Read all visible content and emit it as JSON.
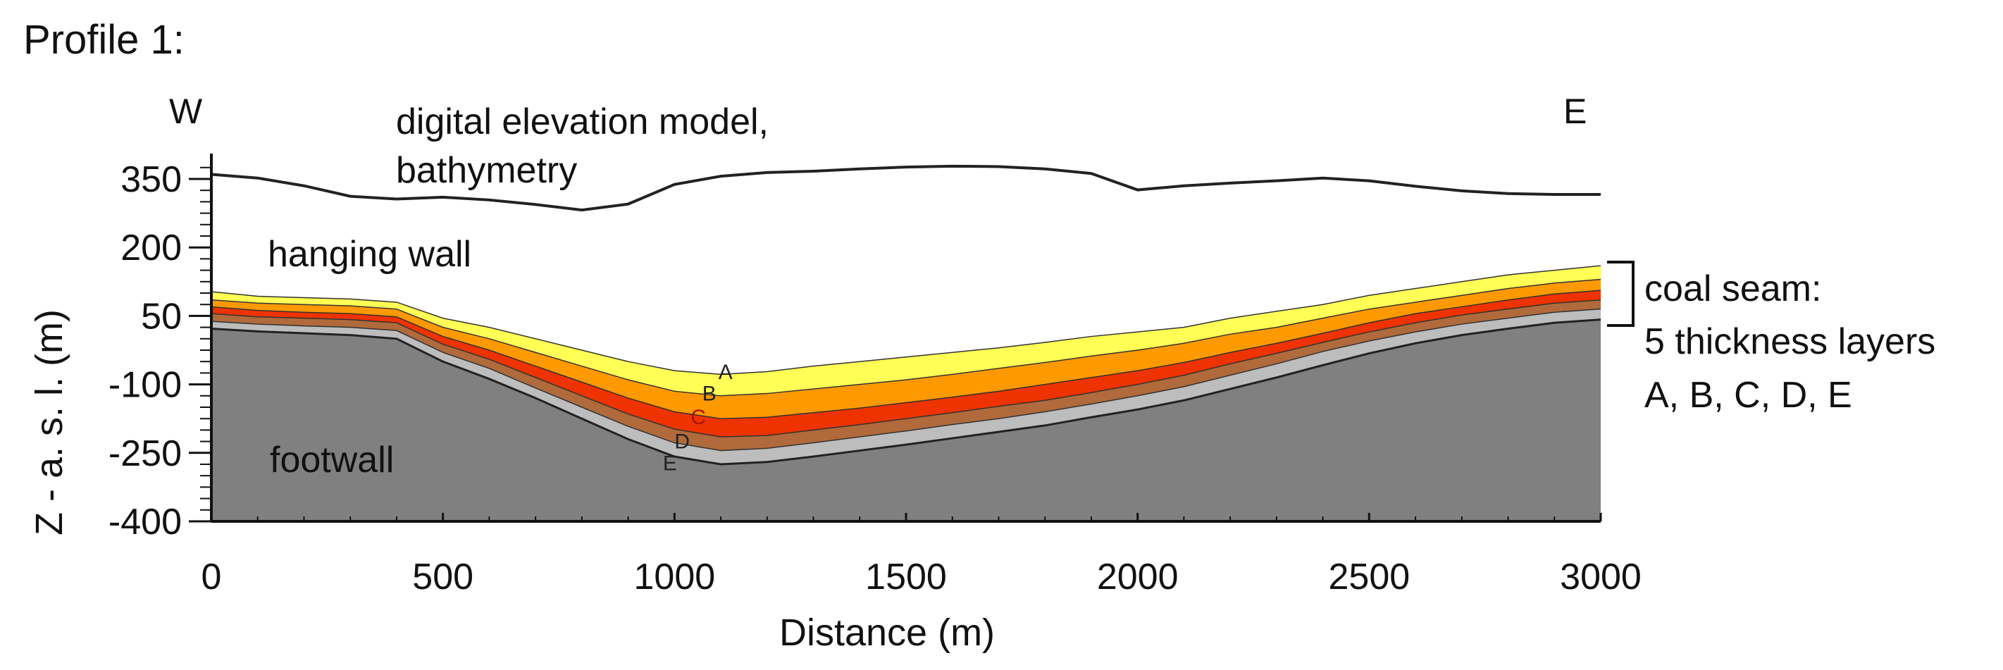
{
  "chart_data": {
    "type": "area",
    "title": "Profile 1:",
    "xlabel": "Distance (m)",
    "ylabel": "Z - a. s. l.  (m)",
    "xlim": [
      0,
      3000
    ],
    "ylim": [
      -400,
      400
    ],
    "x_ticks": [
      0,
      500,
      1000,
      1500,
      2000,
      2500,
      3000
    ],
    "y_ticks": [
      350,
      200,
      50,
      -100,
      -250,
      -400
    ],
    "grid": false,
    "direction_labels": {
      "left": "W",
      "right": "E"
    },
    "annotations": {
      "dem": [
        "digital elevation model,",
        "bathymetry"
      ],
      "hanging_wall": "hanging wall",
      "footwall": "footwall",
      "coal_seam": [
        "coal seam:",
        "5 thickness layers",
        "A, B, C, D, E"
      ]
    },
    "x": [
      0,
      100,
      200,
      300,
      400,
      500,
      600,
      700,
      800,
      900,
      1000,
      1100,
      1200,
      1300,
      1400,
      1500,
      1600,
      1700,
      1800,
      1900,
      2000,
      2100,
      2200,
      2300,
      2400,
      2500,
      2600,
      2700,
      2800,
      2900,
      3000
    ],
    "series": [
      {
        "name": "digital elevation model, bathymetry",
        "type": "line",
        "color": "#222222",
        "values": [
          360,
          352,
          335,
          312,
          306,
          310,
          304,
          294,
          282,
          295,
          338,
          356,
          364,
          367,
          372,
          376,
          378,
          377,
          372,
          362,
          326,
          335,
          341,
          346,
          352,
          346,
          334,
          324,
          318,
          316,
          316
        ]
      },
      {
        "name": "A",
        "color": "#ffff55",
        "values": [
          103,
          93,
          90,
          87,
          80,
          45,
          25,
          0,
          -25,
          -50,
          -70,
          -78,
          -72,
          -60,
          -50,
          -40,
          -30,
          -20,
          -8,
          5,
          15,
          25,
          45,
          60,
          75,
          95,
          110,
          125,
          140,
          150,
          160
        ]
      },
      {
        "name": "B",
        "color": "#ff9900",
        "values": [
          85,
          78,
          75,
          72,
          65,
          25,
          0,
          -30,
          -60,
          -90,
          -115,
          -125,
          -120,
          -110,
          -100,
          -90,
          -78,
          -65,
          -52,
          -38,
          -25,
          -10,
          10,
          25,
          45,
          65,
          80,
          95,
          110,
          122,
          130
        ]
      },
      {
        "name": "C",
        "color": "#ee3300",
        "values": [
          70,
          62,
          58,
          55,
          48,
          5,
          -25,
          -60,
          -95,
          -130,
          -160,
          -175,
          -172,
          -162,
          -152,
          -140,
          -128,
          -115,
          -100,
          -85,
          -70,
          -52,
          -30,
          -10,
          12,
          35,
          55,
          70,
          85,
          98,
          106
        ]
      },
      {
        "name": "D",
        "color": "#b06a3b",
        "values": [
          55,
          48,
          45,
          42,
          35,
          -12,
          -45,
          -85,
          -125,
          -165,
          -198,
          -215,
          -212,
          -200,
          -188,
          -175,
          -162,
          -148,
          -135,
          -118,
          -100,
          -80,
          -55,
          -32,
          -8,
          15,
          35,
          52,
          65,
          78,
          85
        ]
      },
      {
        "name": "E",
        "color": "#bdbdbd",
        "values": [
          38,
          32,
          28,
          25,
          18,
          -30,
          -65,
          -108,
          -150,
          -192,
          -228,
          -245,
          -240,
          -228,
          -215,
          -202,
          -188,
          -175,
          -160,
          -143,
          -125,
          -105,
          -80,
          -55,
          -28,
          -5,
          15,
          32,
          45,
          58,
          65
        ]
      },
      {
        "name": "footwall",
        "color": "#808080",
        "values": [
          22,
          16,
          12,
          8,
          0,
          -50,
          -88,
          -130,
          -175,
          -220,
          -258,
          -275,
          -270,
          -258,
          -245,
          -232,
          -218,
          -204,
          -190,
          -172,
          -155,
          -135,
          -110,
          -85,
          -58,
          -32,
          -10,
          8,
          22,
          35,
          42
        ]
      }
    ],
    "layer_labels": [
      {
        "text": "A",
        "x": 1095,
        "y": -88,
        "color": "#222222"
      },
      {
        "text": "B",
        "x": 1060,
        "y": -135,
        "color": "#222222"
      },
      {
        "text": "C",
        "x": 1035,
        "y": -187,
        "color": "#aa1100"
      },
      {
        "text": "D",
        "x": 1000,
        "y": -240,
        "color": "#222222"
      },
      {
        "text": "E",
        "x": 975,
        "y": -288,
        "color": "#222222"
      }
    ]
  }
}
